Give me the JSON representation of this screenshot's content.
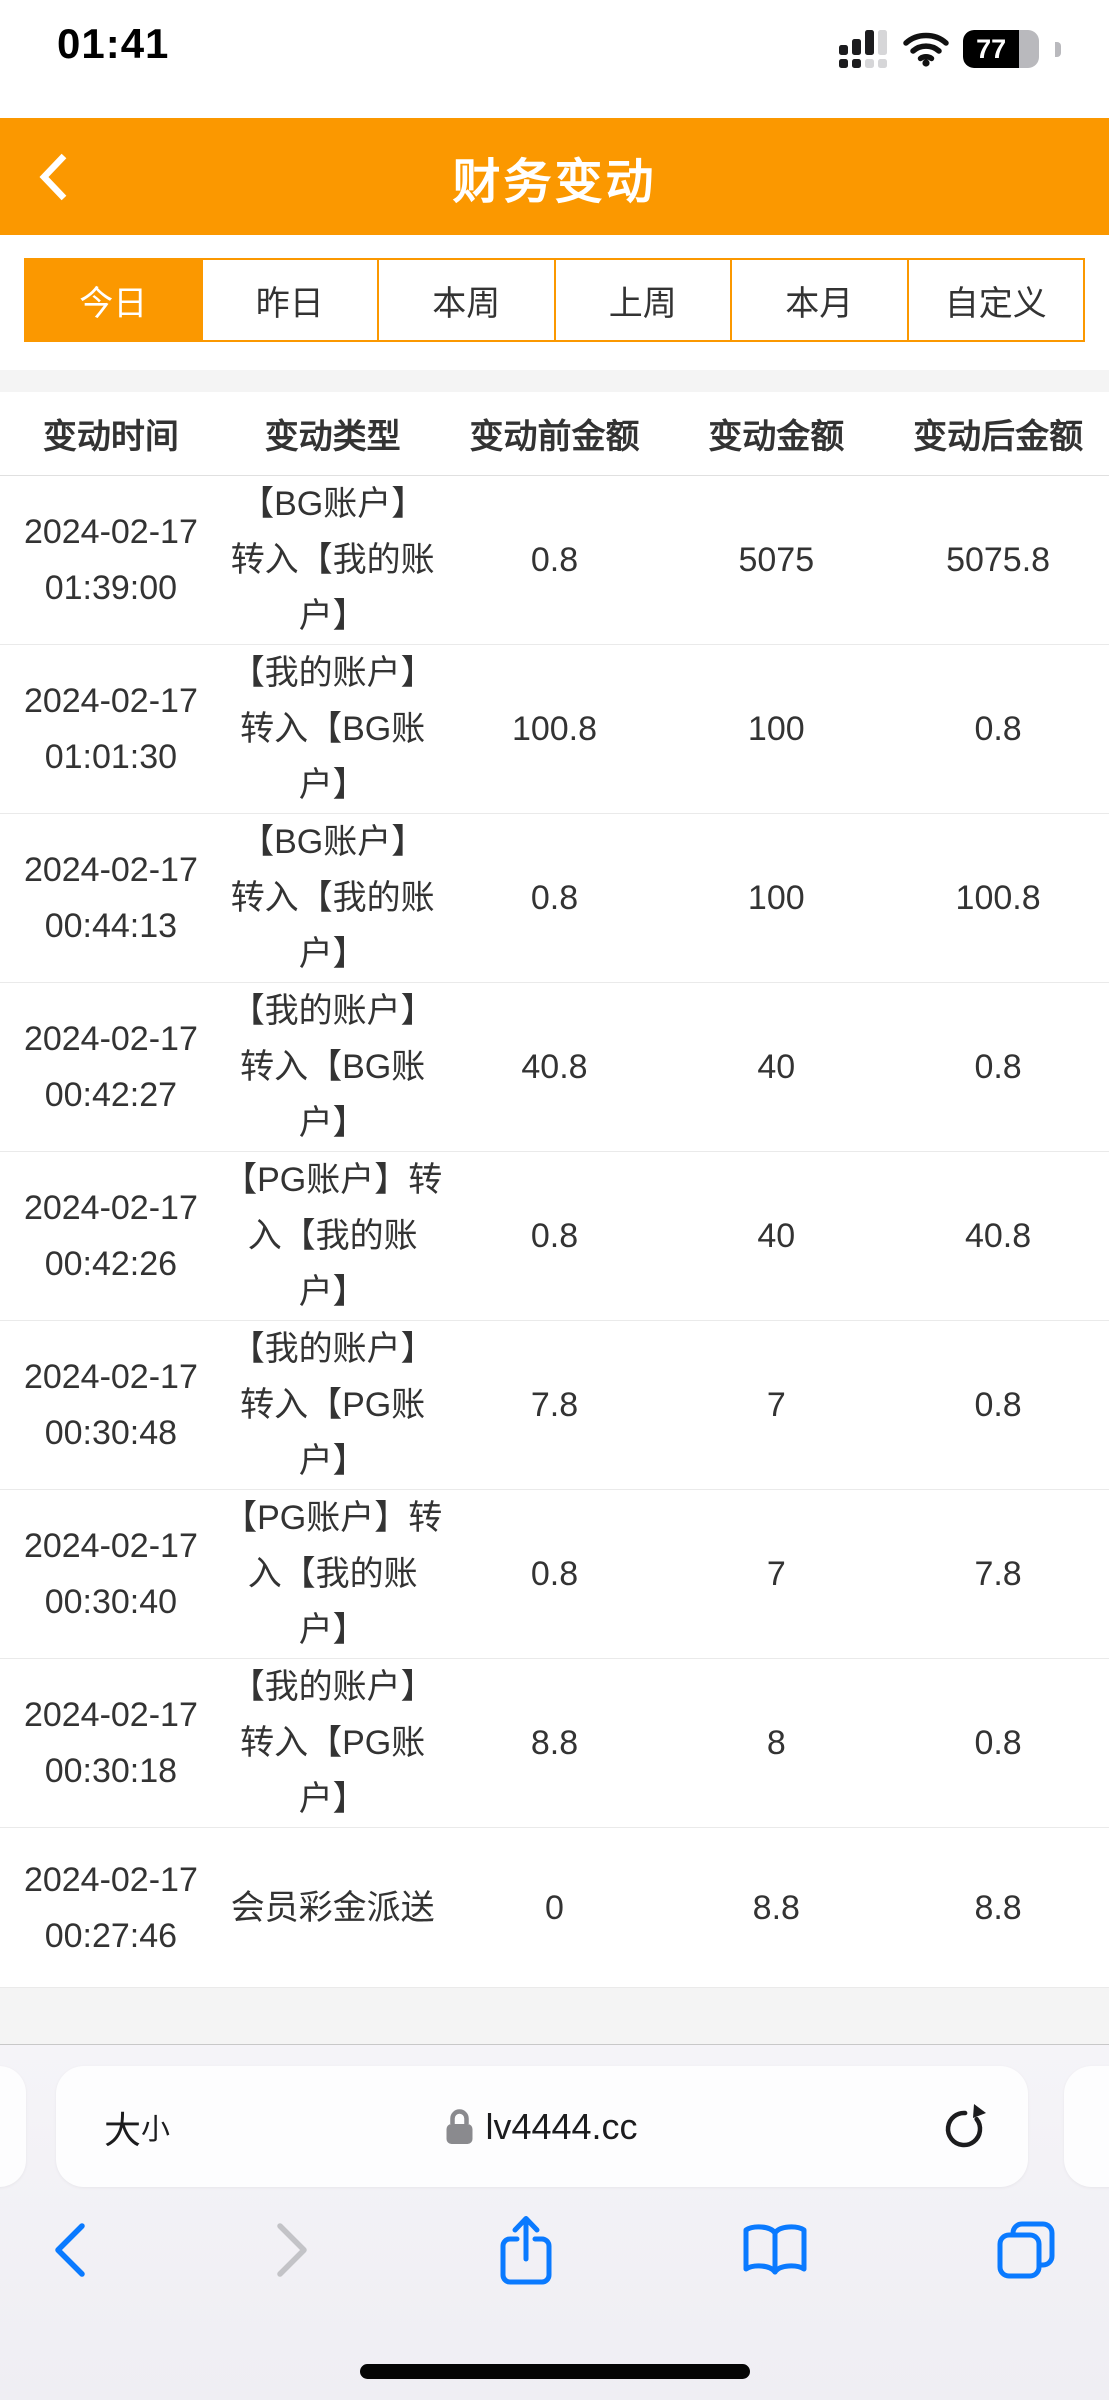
{
  "status_bar": {
    "time": "01:41",
    "battery": "77"
  },
  "header": {
    "title": "财务变动"
  },
  "tabs": {
    "active": "今日",
    "items": [
      "今日",
      "昨日",
      "本周",
      "上周",
      "本月",
      "自定义"
    ]
  },
  "table": {
    "columns": [
      "变动时间",
      "变动类型",
      "变动前金额",
      "变动金额",
      "变动后金额"
    ],
    "rows": [
      {
        "date": "2024-02-17",
        "time": "01:39:00",
        "type": "【BG账户】\n转入【我的账\n户】",
        "before": "0.8",
        "amount": "5075",
        "after": "5075.8"
      },
      {
        "date": "2024-02-17",
        "time": "01:01:30",
        "type": "【我的账户】\n转入【BG账\n户】",
        "before": "100.8",
        "amount": "100",
        "after": "0.8"
      },
      {
        "date": "2024-02-17",
        "time": "00:44:13",
        "type": "【BG账户】\n转入【我的账\n户】",
        "before": "0.8",
        "amount": "100",
        "after": "100.8"
      },
      {
        "date": "2024-02-17",
        "time": "00:42:27",
        "type": "【我的账户】\n转入【BG账\n户】",
        "before": "40.8",
        "amount": "40",
        "after": "0.8"
      },
      {
        "date": "2024-02-17",
        "time": "00:42:26",
        "type": "【PG账户】转\n入【我的账\n户】",
        "before": "0.8",
        "amount": "40",
        "after": "40.8"
      },
      {
        "date": "2024-02-17",
        "time": "00:30:48",
        "type": "【我的账户】\n转入【PG账\n户】",
        "before": "7.8",
        "amount": "7",
        "after": "0.8"
      },
      {
        "date": "2024-02-17",
        "time": "00:30:40",
        "type": "【PG账户】转\n入【我的账\n户】",
        "before": "0.8",
        "amount": "7",
        "after": "7.8"
      },
      {
        "date": "2024-02-17",
        "time": "00:30:18",
        "type": "【我的账户】\n转入【PG账\n户】",
        "before": "8.8",
        "amount": "8",
        "after": "0.8"
      },
      {
        "date": "2024-02-17",
        "time": "00:27:46",
        "type": "会员彩金派送",
        "before": "0",
        "amount": "8.8",
        "after": "8.8"
      }
    ]
  },
  "browser": {
    "text_size_large": "大",
    "text_size_small": "小",
    "url": "lv4444.cc"
  },
  "colors": {
    "accent": "#FB9800",
    "ios_blue": "#0A7AFF",
    "disabled_gray": "#c3c3c7",
    "text": "#333333"
  }
}
